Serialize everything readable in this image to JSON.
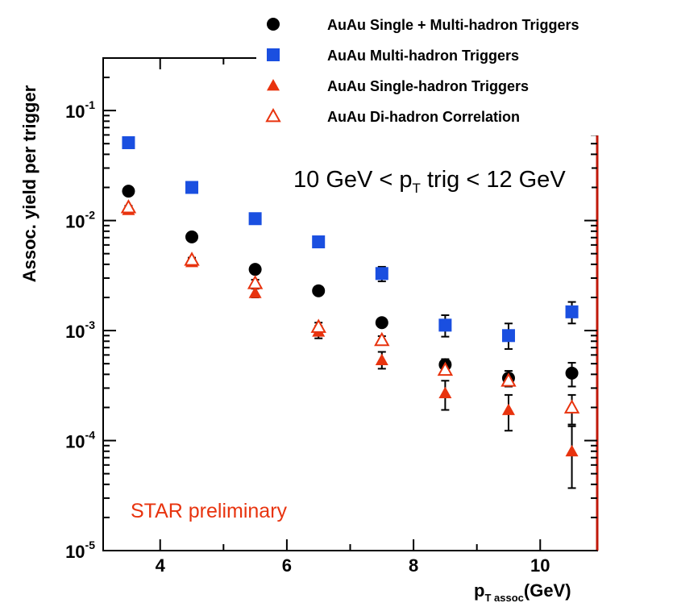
{
  "chart_data": {
    "type": "scatter",
    "title": "",
    "xlabel": "p",
    "xlabel_sub": "T assoc",
    "xlabel_unit": "(GeV)",
    "ylabel": "Assoc. yield per trigger",
    "xlim": [
      3.1,
      10.9
    ],
    "ylim": [
      1e-05,
      0.3
    ],
    "y_scale": "log",
    "grid": false,
    "legend_position": "top-right",
    "x_ticks": [
      {
        "value": 4,
        "label": "4"
      },
      {
        "value": 6,
        "label": "6"
      },
      {
        "value": 8,
        "label": "8"
      },
      {
        "value": 10,
        "label": "10"
      }
    ],
    "y_ticks": [
      {
        "value": 0.1,
        "base": "10",
        "exp": "-1"
      },
      {
        "value": 0.01,
        "base": "10",
        "exp": "-2"
      },
      {
        "value": 0.001,
        "base": "10",
        "exp": "-3"
      },
      {
        "value": 0.0001,
        "base": "10",
        "exp": "-4"
      },
      {
        "value": 1e-05,
        "base": "10",
        "exp": "-5"
      }
    ],
    "series": [
      {
        "name": "AuAu Single + Multi-hadron Triggers",
        "marker": "circle-filled",
        "color": "#000000",
        "x": [
          3.5,
          4.5,
          5.5,
          6.5,
          7.5,
          8.5,
          9.5,
          10.5
        ],
        "y": [
          0.0185,
          0.0071,
          0.0036,
          0.0023,
          0.00118,
          0.00049,
          0.00037,
          0.00041
        ],
        "err_low": [
          0.0175,
          0.0067,
          0.0034,
          0.0022,
          0.00108,
          0.00043,
          0.00031,
          0.00031
        ],
        "err_high": [
          0.0195,
          0.0075,
          0.0038,
          0.0024,
          0.00128,
          0.00055,
          0.00043,
          0.00051
        ]
      },
      {
        "name": "AuAu Multi-hadron Triggers",
        "marker": "square-filled",
        "color": "#1a4fe0",
        "x": [
          3.5,
          4.5,
          5.5,
          6.5,
          7.5,
          8.5,
          9.5,
          10.5
        ],
        "y": [
          0.051,
          0.02,
          0.0104,
          0.0064,
          0.0033,
          0.00112,
          0.0009,
          0.00148
        ],
        "err_low": [
          0.049,
          0.019,
          0.0099,
          0.0061,
          0.0028,
          0.00088,
          0.00068,
          0.00116
        ],
        "err_high": [
          0.053,
          0.021,
          0.0109,
          0.0067,
          0.0038,
          0.00138,
          0.00116,
          0.00182
        ]
      },
      {
        "name": "AuAu Single-hadron Triggers",
        "marker": "triangle-filled",
        "color": "#e8330e",
        "x": [
          3.5,
          4.5,
          5.5,
          6.5,
          7.5,
          8.5,
          9.5,
          10.5
        ],
        "y": [
          0.0125,
          0.0042,
          0.0022,
          0.00098,
          0.00054,
          0.00027,
          0.00019,
          8e-05
        ],
        "err_low": [
          0.0119,
          0.0039,
          0.002,
          0.00085,
          0.00045,
          0.00019,
          0.000123,
          3.7e-05
        ],
        "err_high": [
          0.0131,
          0.0045,
          0.0024,
          0.0011,
          0.00064,
          0.00035,
          0.00026,
          0.000135
        ]
      },
      {
        "name": "AuAu Di-hadron Correlation",
        "marker": "triangle-open",
        "color": "#e8330e",
        "x": [
          3.5,
          4.5,
          5.5,
          6.5,
          7.5,
          8.5,
          9.5,
          10.5
        ],
        "y": [
          0.0132,
          0.0044,
          0.0027,
          0.00108,
          0.00082,
          0.00044,
          0.00035,
          0.0002
        ],
        "err_low": [
          0.0128,
          0.0042,
          0.0025,
          0.00098,
          0.00075,
          0.0004,
          0.00031,
          0.00014
        ],
        "err_high": [
          0.0136,
          0.0046,
          0.0029,
          0.00118,
          0.00089,
          0.00048,
          0.00039,
          0.00026
        ]
      }
    ],
    "annotations": {
      "trigger_range": {
        "prefix": "10 GeV < p",
        "sub": "T",
        "suffix": " trig < 12 GeV"
      },
      "preliminary": {
        "text": "STAR preliminary",
        "color": "#e8330e"
      }
    }
  }
}
